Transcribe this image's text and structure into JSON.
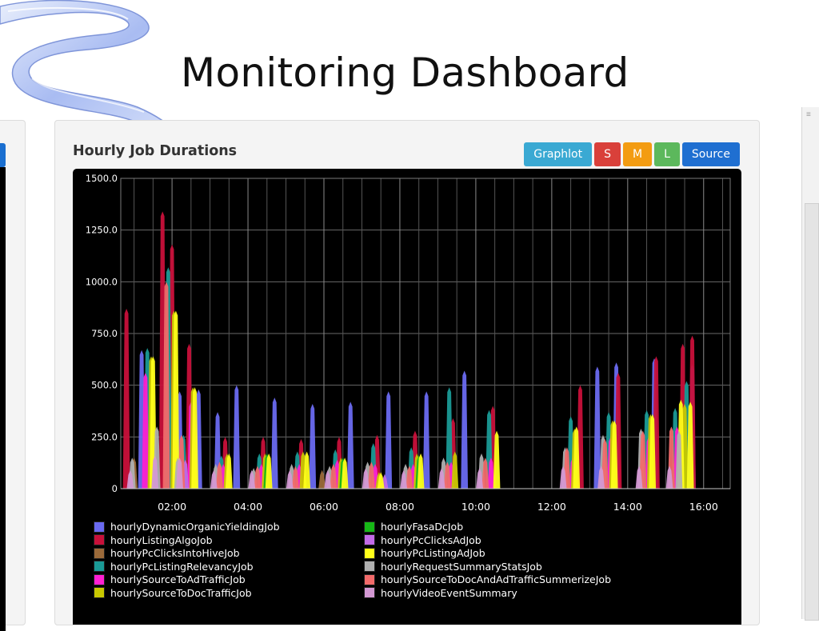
{
  "slide": {
    "title": "Monitoring Dashboard"
  },
  "panel": {
    "title": "Hourly Job Durations",
    "buttons": [
      {
        "label": "Graphlot",
        "color": "#3aa9d3",
        "icon": "graphlot"
      },
      {
        "label": "S",
        "color": "#d9403a",
        "icon": "small-size"
      },
      {
        "label": "M",
        "color": "#f39c12",
        "icon": "medium-size"
      },
      {
        "label": "L",
        "color": "#5cb85c",
        "icon": "large-size"
      },
      {
        "label": "Source",
        "color": "#1f6fd1",
        "icon": "source"
      }
    ]
  },
  "chart_data": {
    "type": "bar",
    "title": "",
    "xlabel": "",
    "ylabel": "",
    "xlim": [
      0.65,
      16.7
    ],
    "ylim": [
      0,
      1500
    ],
    "yticks": [
      "1500.0",
      "1250.0",
      "1000.0",
      "750.0",
      "500.0",
      "250.0",
      "0"
    ],
    "ytick_values": [
      1500,
      1250,
      1000,
      750,
      500,
      250,
      0
    ],
    "xticks": [
      "02:00",
      "04:00",
      "06:00",
      "08:00",
      "10:00",
      "12:00",
      "14:00",
      "16:00"
    ],
    "xtick_values": [
      2,
      4,
      6,
      8,
      10,
      12,
      14,
      16
    ],
    "grid": true,
    "legend_position": "bottom",
    "series": [
      {
        "name": "hourlyDynamicOrganicYieldingJob",
        "color": "#6a6af0",
        "x": [
          1.2,
          2.2,
          2.7,
          3.2,
          3.7,
          4.7,
          5.7,
          6.7,
          7.7,
          8.7,
          9.7,
          13.2,
          13.7,
          14.7,
          15.7
        ],
        "values": [
          670,
          470,
          480,
          370,
          500,
          440,
          410,
          420,
          470,
          470,
          570,
          590,
          610,
          630,
          600
        ]
      },
      {
        "name": "hourlyListingAlgoJob",
        "color": "#c8103a",
        "x": [
          0.8,
          1.75,
          2.0,
          2.45,
          3.4,
          4.4,
          5.4,
          6.4,
          7.4,
          8.4,
          9.4,
          10.45,
          12.75,
          13.75,
          14.75,
          15.45,
          15.7
        ],
        "values": [
          870,
          1340,
          1180,
          700,
          250,
          250,
          240,
          250,
          260,
          280,
          340,
          400,
          500,
          560,
          640,
          700,
          740
        ]
      },
      {
        "name": "hourlyPcClicksIntoHiveJob",
        "color": "#9b6a3a",
        "x": [
          1.0,
          5.95
        ],
        "values": [
          150,
          90
        ]
      },
      {
        "name": "hourlyPcListingRelevancyJob",
        "color": "#1a9a96",
        "x": [
          1.35,
          1.9,
          2.3,
          3.3,
          4.3,
          5.3,
          6.3,
          7.3,
          8.3,
          9.3,
          10.35,
          12.5,
          13.5,
          14.5,
          15.25,
          15.55
        ],
        "values": [
          680,
          1070,
          260,
          160,
          170,
          180,
          190,
          220,
          200,
          490,
          380,
          350,
          370,
          380,
          390,
          520
        ]
      },
      {
        "name": "hourlySourceToAdTrafficJob",
        "color": "#ff1fd2",
        "x": [
          1.3,
          2.5,
          3.35,
          4.35,
          5.35,
          6.35,
          7.35,
          8.35,
          9.35,
          10.4,
          12.55,
          13.55,
          14.55,
          15.3
        ],
        "values": [
          560,
          420,
          120,
          120,
          120,
          140,
          120,
          120,
          130,
          150,
          150,
          250,
          250,
          300
        ]
      },
      {
        "name": "hourlySourceToDocTrafficJob",
        "color": "#c8c800",
        "x": [
          1.45,
          2.05,
          2.55,
          3.45,
          4.45,
          5.45,
          6.45,
          7.45,
          8.45,
          9.45,
          12.6,
          13.6,
          14.6,
          15.5
        ],
        "values": [
          640,
          860,
          490,
          170,
          170,
          180,
          150,
          80,
          170,
          180,
          290,
          330,
          360,
          410
        ]
      },
      {
        "name": "hourlyFasaDcJob",
        "color": "#16b816",
        "x": [
          4.5,
          6.5,
          8.5
        ],
        "values": [
          170,
          150,
          160
        ]
      },
      {
        "name": "hourlyPcClicksAdJob",
        "color": "#c36ae8",
        "x": [
          2.35,
          7.6
        ],
        "values": [
          140,
          70
        ]
      },
      {
        "name": "hourlyPcListingAdJob",
        "color": "#ffff1a",
        "x": [
          1.5,
          2.1,
          2.6,
          3.5,
          4.55,
          5.55,
          6.55,
          7.5,
          8.55,
          10.55,
          12.65,
          13.65,
          14.65,
          15.4,
          15.65
        ],
        "values": [
          640,
          860,
          490,
          170,
          170,
          180,
          150,
          80,
          170,
          280,
          300,
          330,
          360,
          430,
          420
        ]
      },
      {
        "name": "hourlyRequestSummaryStatsJob",
        "color": "#b0b0b0",
        "x": [
          0.95,
          1.6,
          2.15,
          3.15,
          4.15,
          5.15,
          6.15,
          7.15,
          8.15,
          9.15,
          10.15,
          12.35,
          13.35,
          14.35,
          15.35
        ],
        "values": [
          150,
          300,
          150,
          120,
          100,
          120,
          110,
          130,
          120,
          150,
          170,
          200,
          260,
          290,
          280
        ]
      },
      {
        "name": "hourlySourceToDocAndAdTrafficSummerizeJob",
        "color": "#f26a6a",
        "x": [
          1.85,
          2.25,
          3.25,
          4.25,
          5.25,
          6.25,
          7.25,
          8.25,
          9.25,
          10.25,
          12.4,
          13.4,
          14.4,
          15.15
        ],
        "values": [
          1000,
          260,
          130,
          110,
          110,
          120,
          130,
          110,
          130,
          150,
          200,
          240,
          280,
          300
        ]
      },
      {
        "name": "hourlyVideoEventSummary",
        "color": "#d398d3",
        "x": [
          0.9,
          1.55,
          2.2,
          3.1,
          4.1,
          5.1,
          6.1,
          7.1,
          8.1,
          9.1,
          10.1,
          12.3,
          13.3,
          14.3,
          15.1
        ],
        "values": [
          90,
          160,
          150,
          90,
          90,
          90,
          90,
          100,
          90,
          100,
          100,
          110,
          110,
          110,
          110
        ]
      }
    ],
    "legend": {
      "columns": [
        [
          "hourlyDynamicOrganicYieldingJob",
          "hourlyListingAlgoJob",
          "hourlyPcClicksIntoHiveJob",
          "hourlyPcListingRelevancyJob",
          "hourlySourceToAdTrafficJob",
          "hourlySourceToDocTrafficJob"
        ],
        [
          "hourlyFasaDcJob",
          "hourlyPcClicksAdJob",
          "hourlyPcListingAdJob",
          "hourlyRequestSummaryStatsJob",
          "hourlySourceToDocAndAdTrafficSummerizeJob",
          "hourlyVideoEventSummary"
        ]
      ]
    }
  }
}
